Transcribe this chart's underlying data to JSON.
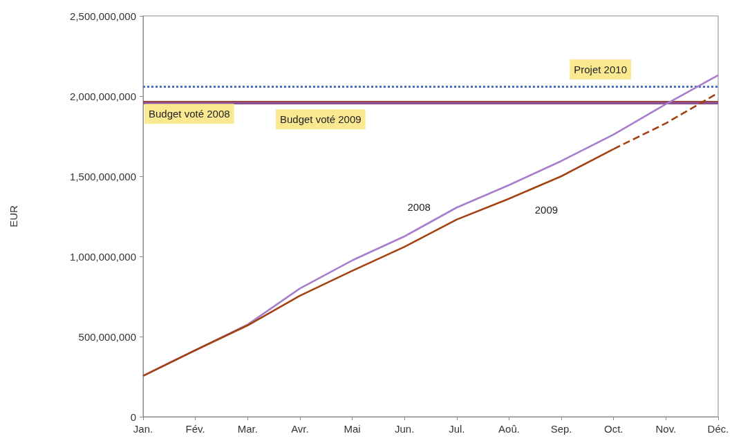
{
  "chart_data": {
    "type": "line",
    "ylabel": "EUR",
    "categories": [
      "Jan.",
      "Fév.",
      "Mar.",
      "Avr.",
      "Mai",
      "Jun.",
      "Jul.",
      "Aoû.",
      "Sep.",
      "Oct.",
      "Nov.",
      "Déc."
    ],
    "series": [
      {
        "name": "2008",
        "color": "#a67ecb",
        "values": [
          255000000,
          415000000,
          575000000,
          800000000,
          975000000,
          1125000000,
          1305000000,
          1445000000,
          1595000000,
          1760000000,
          1950000000,
          2130000000
        ]
      },
      {
        "name": "2009",
        "color": "#a3410f",
        "values": [
          255000000,
          415000000,
          570000000,
          755000000,
          910000000,
          1060000000,
          1230000000,
          1360000000,
          1500000000,
          1670000000,
          null,
          null
        ]
      },
      {
        "color": "#a3410f",
        "line_style": "dashed",
        "values": [
          null,
          null,
          null,
          null,
          null,
          null,
          null,
          null,
          null,
          1670000000,
          1830000000,
          2020000000
        ]
      }
    ],
    "ylim": [
      0,
      2500000000
    ],
    "yticks": [
      {
        "value": 0,
        "label": "0"
      },
      {
        "value": 500000000,
        "label": "500,000,000"
      },
      {
        "value": 1000000000,
        "label": "1,000,000,000"
      },
      {
        "value": 1500000000,
        "label": "1,500,000,000"
      },
      {
        "value": 2000000000,
        "label": "2,000,000,000"
      },
      {
        "value": 2500000000,
        "label": "2,500,000,000"
      }
    ],
    "ref_lines": [
      {
        "axis": "y",
        "value": 2060000000,
        "label": "Projet 2010",
        "color": "#4a6cc8",
        "line_style": "dotted"
      },
      {
        "axis": "y",
        "value": 1960000000,
        "label": "Budget voté 2008",
        "color": "#a3410f"
      },
      {
        "axis": "y",
        "value": 1960000000,
        "label": "Budget voté 2009",
        "color": "#8e4f9c"
      }
    ],
    "grid": false,
    "legend": false
  }
}
